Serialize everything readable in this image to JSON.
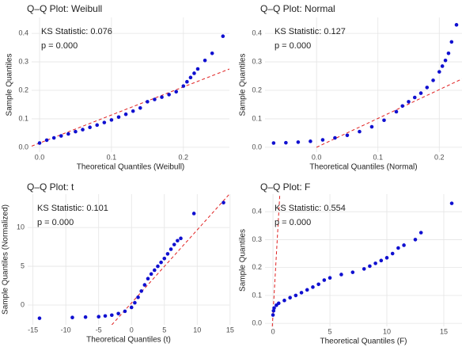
{
  "chart_data": [
    {
      "type": "scatter",
      "title": "Q–Q Plot: Weibull",
      "x_label": "Theoretical Quantiles (Weibull)",
      "y_label": "Sample Quantiles",
      "annotations": [
        "KS Statistic: 0.076",
        "p = 0.000"
      ],
      "xlim": [
        -0.011,
        0.264
      ],
      "ylim": [
        -0.017,
        0.456
      ],
      "xticks": [
        {
          "value": 0,
          "label": "0.0"
        },
        0.1,
        0.2
      ],
      "yticks": [
        {
          "value": 0,
          "label": "0.0"
        },
        0.1,
        0.2,
        0.3,
        0.4
      ],
      "grid": true,
      "color": "#1010d0",
      "line_color": "#e02020",
      "x": [
        0.0,
        0.01,
        0.02,
        0.03,
        0.04,
        0.05,
        0.06,
        0.07,
        0.08,
        0.09,
        0.1,
        0.11,
        0.12,
        0.13,
        0.14,
        0.15,
        0.16,
        0.17,
        0.18,
        0.19,
        0.2,
        0.205,
        0.21,
        0.215,
        0.22,
        0.23,
        0.24,
        0.255
      ],
      "y": [
        0.015,
        0.025,
        0.033,
        0.04,
        0.047,
        0.055,
        0.062,
        0.07,
        0.078,
        0.087,
        0.096,
        0.106,
        0.116,
        0.127,
        0.138,
        0.16,
        0.168,
        0.176,
        0.185,
        0.195,
        0.215,
        0.23,
        0.245,
        0.26,
        0.275,
        0.305,
        0.33,
        0.39
      ],
      "reference_line": {
        "x": [
          -0.011,
          0.264
        ],
        "y": [
          0.004,
          0.275
        ]
      }
    },
    {
      "type": "scatter",
      "title": "Q–Q Plot: Normal",
      "x_label": "Theoretical Quantiles (Normal)",
      "y_label": "Sample Quantiles",
      "annotations": [
        "KS Statistic: 0.127",
        "p = 0.000"
      ],
      "xlim": [
        -0.084,
        0.237
      ],
      "ylim": [
        -0.017,
        0.456
      ],
      "xticks": [
        {
          "value": 0,
          "label": "0.0"
        },
        0.1,
        0.2
      ],
      "yticks": [
        {
          "value": 0,
          "label": "0.0"
        },
        0.1,
        0.2,
        0.3,
        0.4
      ],
      "grid": true,
      "color": "#1010d0",
      "line_color": "#e02020",
      "x": [
        -0.07,
        -0.05,
        -0.03,
        -0.01,
        0.01,
        0.03,
        0.05,
        0.07,
        0.09,
        0.11,
        0.13,
        0.14,
        0.15,
        0.16,
        0.17,
        0.18,
        0.19,
        0.2,
        0.205,
        0.21,
        0.215,
        0.22,
        0.228
      ],
      "y": [
        0.015,
        0.016,
        0.018,
        0.021,
        0.026,
        0.033,
        0.042,
        0.055,
        0.072,
        0.095,
        0.125,
        0.145,
        0.16,
        0.175,
        0.19,
        0.21,
        0.235,
        0.265,
        0.285,
        0.305,
        0.33,
        0.37,
        0.43
      ],
      "reference_line": {
        "x": [
          0.0,
          0.237
        ],
        "y": [
          0.0,
          0.24
        ]
      }
    },
    {
      "type": "scatter",
      "title": "Q–Q Plot: t",
      "x_label": "Theoretical Quantiles (t)",
      "y_label": "Sample Quantiles (Normalized)",
      "annotations": [
        "KS Statistic: 0.101",
        "p = 0.000"
      ],
      "xlim": [
        -15.8,
        14.9
      ],
      "ylim": [
        -2.55,
        14.3
      ],
      "xticks": [
        -15,
        -10,
        -5,
        0,
        5,
        10,
        15
      ],
      "yticks": [
        0,
        5,
        10
      ],
      "grid": true,
      "color": "#1010d0",
      "line_color": "#e02020",
      "x": [
        -14,
        -9,
        -7,
        -5,
        -4,
        -3,
        -2,
        -1,
        0,
        0.5,
        1,
        1.5,
        2,
        2.5,
        3,
        3.5,
        4,
        4.5,
        5,
        5.5,
        6,
        6.5,
        7,
        7.5,
        9.5,
        14
      ],
      "y": [
        -1.7,
        -1.6,
        -1.55,
        -1.5,
        -1.4,
        -1.3,
        -1.1,
        -0.8,
        -0.3,
        0.3,
        1.0,
        1.8,
        2.6,
        3.4,
        4.0,
        4.5,
        5.0,
        5.5,
        6.0,
        6.6,
        7.2,
        7.8,
        8.3,
        8.6,
        11.8,
        13.2
      ],
      "reference_line": {
        "x": [
          -3,
          14.9
        ],
        "y": [
          -2.55,
          14.3
        ]
      }
    },
    {
      "type": "scatter",
      "title": "Q–Q Plot: F",
      "x_label": "Theoretical Quantiles (F)",
      "y_label": "Sample Quantiles",
      "annotations": [
        "KS Statistic: 0.554",
        "p = 0.000"
      ],
      "xlim": [
        -0.7,
        16.6
      ],
      "ylim": [
        -0.011,
        0.463
      ],
      "xticks": [
        0,
        5,
        10,
        15
      ],
      "yticks": [
        {
          "value": 0,
          "label": "0.0"
        },
        0.1,
        0.2,
        0.3,
        0.4
      ],
      "grid": true,
      "color": "#1010d0",
      "line_color": "#e02020",
      "x": [
        0.0,
        0.05,
        0.1,
        0.3,
        0.5,
        1,
        1.5,
        2,
        2.5,
        3,
        3.5,
        4,
        4.5,
        5,
        6,
        7,
        8,
        8.5,
        9,
        9.5,
        10,
        10.5,
        11,
        11.5,
        12.5,
        13,
        15.7
      ],
      "y": [
        0.03,
        0.045,
        0.055,
        0.065,
        0.072,
        0.082,
        0.092,
        0.1,
        0.11,
        0.12,
        0.13,
        0.14,
        0.155,
        0.163,
        0.175,
        0.183,
        0.195,
        0.205,
        0.215,
        0.225,
        0.235,
        0.25,
        0.27,
        0.28,
        0.3,
        0.325,
        0.43
      ],
      "reference_line": {
        "x": [
          -0.06,
          0.6
        ],
        "y": [
          -0.011,
          0.463
        ]
      }
    }
  ]
}
